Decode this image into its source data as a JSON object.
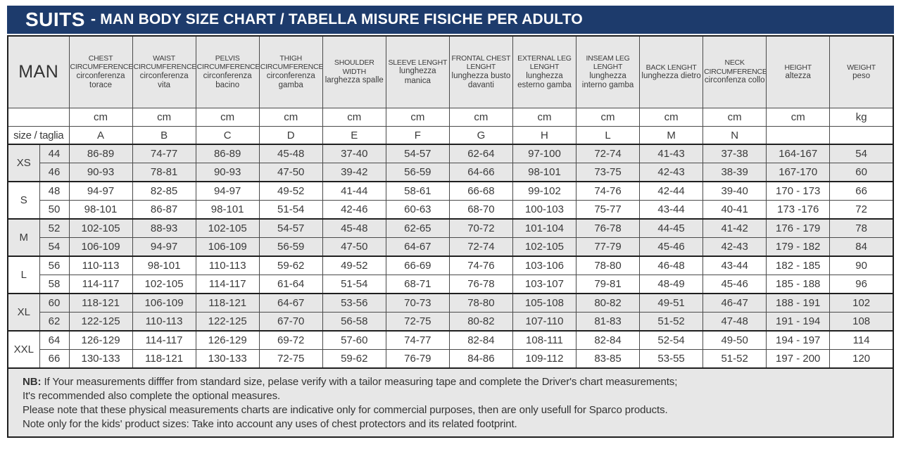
{
  "title": {
    "brand": "SUITS",
    "rest": "- MAN BODY SIZE CHART / TABELLA MISURE FISICHE PER ADULTO"
  },
  "colors": {
    "title_bar": "#1d3b6c",
    "shaded_row": "#e7e7e7",
    "border": "#1f1f1f"
  },
  "table": {
    "man_label": "MAN",
    "size_row_label": "size / taglia",
    "columns": [
      {
        "id": "chest-circumference",
        "en": "CHEST CIRCUMFERENCE",
        "it": "circonferenza torace",
        "unit": "cm",
        "letter": "A"
      },
      {
        "id": "waist-circumference",
        "en": "WAIST CIRCUMFERENCE",
        "it": "circonferenza vita",
        "unit": "cm",
        "letter": "B"
      },
      {
        "id": "pelvis-circumference",
        "en": "PELVIS CIRCUMFERENCE",
        "it": "circonferenza bacino",
        "unit": "cm",
        "letter": "C"
      },
      {
        "id": "thigh-circumference",
        "en": "THIGH CIRCUMFERENCE",
        "it": "circonferenza gamba",
        "unit": "cm",
        "letter": "D"
      },
      {
        "id": "shoulder-width",
        "en": "SHOULDER WIDTH",
        "it": "larghezza spalle",
        "unit": "cm",
        "letter": "E"
      },
      {
        "id": "sleeve-lenght",
        "en": "SLEEVE LENGHT",
        "it": "lunghezza manica",
        "unit": "cm",
        "letter": "F"
      },
      {
        "id": "frontal-chest-lenght",
        "en": "FRONTAL CHEST LENGHT",
        "it": "lunghezza busto davanti",
        "unit": "cm",
        "letter": "G"
      },
      {
        "id": "external-leg-lenght",
        "en": "EXTERNAL LEG LENGHT",
        "it": "lunghezza esterno gamba",
        "unit": "cm",
        "letter": "H"
      },
      {
        "id": "inseam-leg-lenght",
        "en": "INSEAM LEG LENGHT",
        "it": "lunghezza interno gamba",
        "unit": "cm",
        "letter": "L"
      },
      {
        "id": "back-lenght",
        "en": "BACK LENGHT",
        "it": "lunghezza dietro",
        "unit": "cm",
        "letter": "M"
      },
      {
        "id": "neck-circumference",
        "en": "NECK CIRCUMFERENCE",
        "it": "circonfenza collo",
        "unit": "cm",
        "letter": "N"
      },
      {
        "id": "height",
        "en": "HEIGHT",
        "it": "altezza",
        "unit": "cm",
        "letter": ""
      },
      {
        "id": "weight",
        "en": "WEIGHT",
        "it": "peso",
        "unit": "kg",
        "letter": ""
      }
    ],
    "groups": [
      {
        "label": "XS",
        "rows": [
          {
            "size": "44",
            "values": [
              "86-89",
              "74-77",
              "86-89",
              "45-48",
              "37-40",
              "54-57",
              "62-64",
              "97-100",
              "72-74",
              "41-43",
              "37-38",
              "164-167",
              "54"
            ]
          },
          {
            "size": "46",
            "values": [
              "90-93",
              "78-81",
              "90-93",
              "47-50",
              "39-42",
              "56-59",
              "64-66",
              "98-101",
              "73-75",
              "42-43",
              "38-39",
              "167-170",
              "60"
            ]
          }
        ]
      },
      {
        "label": "S",
        "rows": [
          {
            "size": "48",
            "values": [
              "94-97",
              "82-85",
              "94-97",
              "49-52",
              "41-44",
              "58-61",
              "66-68",
              "99-102",
              "74-76",
              "42-44",
              "39-40",
              "170 - 173",
              "66"
            ]
          },
          {
            "size": "50",
            "values": [
              "98-101",
              "86-87",
              "98-101",
              "51-54",
              "42-46",
              "60-63",
              "68-70",
              "100-103",
              "75-77",
              "43-44",
              "40-41",
              "173 -176",
              "72"
            ]
          }
        ]
      },
      {
        "label": "M",
        "rows": [
          {
            "size": "52",
            "values": [
              "102-105",
              "88-93",
              "102-105",
              "54-57",
              "45-48",
              "62-65",
              "70-72",
              "101-104",
              "76-78",
              "44-45",
              "41-42",
              "176 - 179",
              "78"
            ]
          },
          {
            "size": "54",
            "values": [
              "106-109",
              "94-97",
              "106-109",
              "56-59",
              "47-50",
              "64-67",
              "72-74",
              "102-105",
              "77-79",
              "45-46",
              "42-43",
              "179 - 182",
              "84"
            ]
          }
        ]
      },
      {
        "label": "L",
        "rows": [
          {
            "size": "56",
            "values": [
              "110-113",
              "98-101",
              "110-113",
              "59-62",
              "49-52",
              "66-69",
              "74-76",
              "103-106",
              "78-80",
              "46-48",
              "43-44",
              "182 - 185",
              "90"
            ]
          },
          {
            "size": "58",
            "values": [
              "114-117",
              "102-105",
              "114-117",
              "61-64",
              "51-54",
              "68-71",
              "76-78",
              "103-107",
              "79-81",
              "48-49",
              "45-46",
              "185 - 188",
              "96"
            ]
          }
        ]
      },
      {
        "label": "XL",
        "rows": [
          {
            "size": "60",
            "values": [
              "118-121",
              "106-109",
              "118-121",
              "64-67",
              "53-56",
              "70-73",
              "78-80",
              "105-108",
              "80-82",
              "49-51",
              "46-47",
              "188 - 191",
              "102"
            ]
          },
          {
            "size": "62",
            "values": [
              "122-125",
              "110-113",
              "122-125",
              "67-70",
              "56-58",
              "72-75",
              "80-82",
              "107-110",
              "81-83",
              "51-52",
              "47-48",
              "191 - 194",
              "108"
            ]
          }
        ]
      },
      {
        "label": "XXL",
        "rows": [
          {
            "size": "64",
            "values": [
              "126-129",
              "114-117",
              "126-129",
              "69-72",
              "57-60",
              "74-77",
              "82-84",
              "108-111",
              "82-84",
              "52-54",
              "49-50",
              "194 - 197",
              "114"
            ]
          },
          {
            "size": "66",
            "values": [
              "130-133",
              "118-121",
              "130-133",
              "72-75",
              "59-62",
              "76-79",
              "84-86",
              "109-112",
              "83-85",
              "53-55",
              "51-52",
              "197 - 200",
              "120"
            ]
          }
        ]
      }
    ]
  },
  "footer": {
    "nb_label": "NB:",
    "line1": " If Your measurements difffer from standard size, pelase verify with a tailor measuring tape and complete the Driver's chart measurements;",
    "line2": "It's recommended also complete the optional measures.",
    "line3": "Please note that these physical measurements charts are indicative only for commercial purposes, then are only usefull for Sparco products.",
    "line4": "Note only for the kids' product sizes: Take into account any uses of chest protectors and its related footprint."
  }
}
